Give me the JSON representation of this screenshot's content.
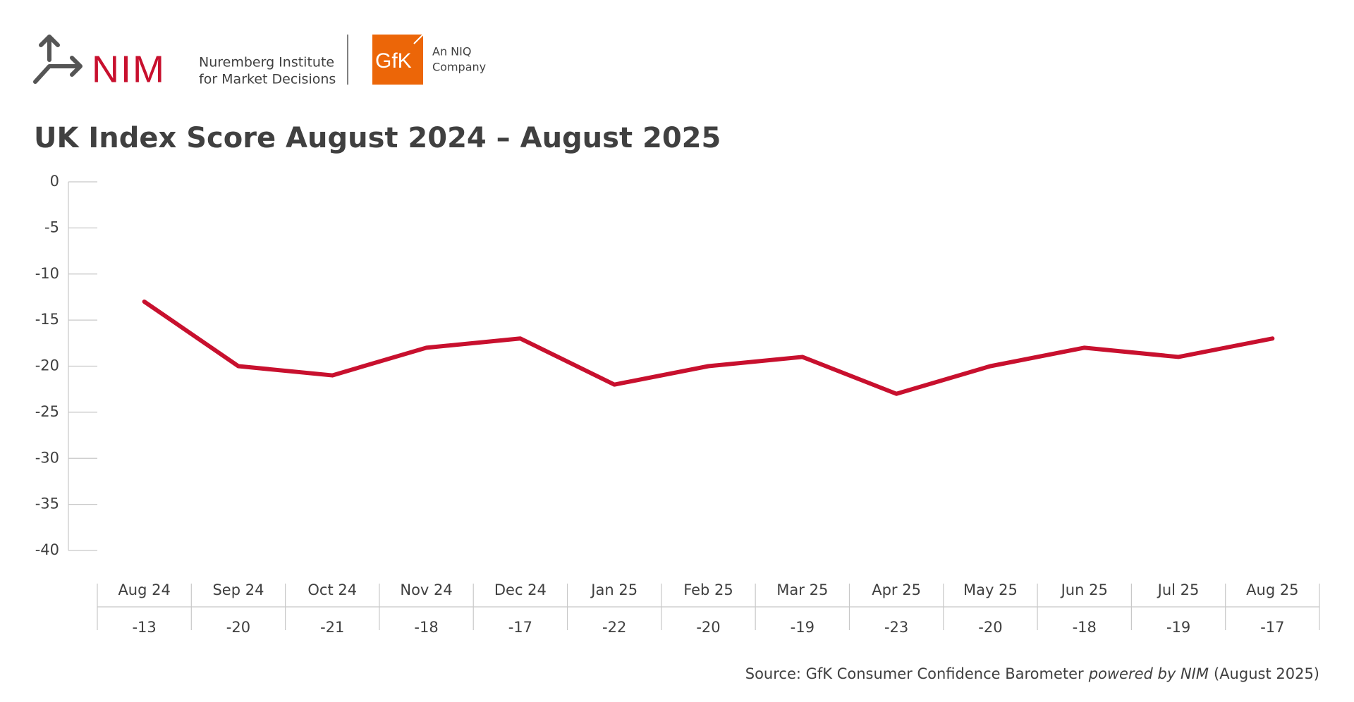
{
  "header": {
    "nim": "NIM",
    "nim_line1": "Nuremberg Institute",
    "nim_line2": "for Market Decisions",
    "gfk": "GfK",
    "gfk_line1": "An NIQ",
    "gfk_line2": "Company"
  },
  "chart_data": {
    "type": "line",
    "title": "UK Index Score August 2024 – August 2025",
    "categories": [
      "Aug 24",
      "Sep 24",
      "Oct 24",
      "Nov 24",
      "Dec 24",
      "Jan 25",
      "Feb 25",
      "Mar 25",
      "Apr 25",
      "May 25",
      "Jun 25",
      "Jul 25",
      "Aug 25"
    ],
    "values": [
      -13,
      -20,
      -21,
      -18,
      -17,
      -22,
      -20,
      -19,
      -23,
      -20,
      -18,
      -19,
      -17
    ],
    "color": "#c8102e",
    "ylim": [
      -40,
      0
    ],
    "yticks": [
      0,
      -5,
      -10,
      -15,
      -20,
      -25,
      -30,
      -35,
      -40
    ],
    "source": {
      "text": "Source: GfK Consumer Confidence Barometer",
      "emphasis": "powered by NIM",
      "suffix": "(August 2025)"
    }
  }
}
